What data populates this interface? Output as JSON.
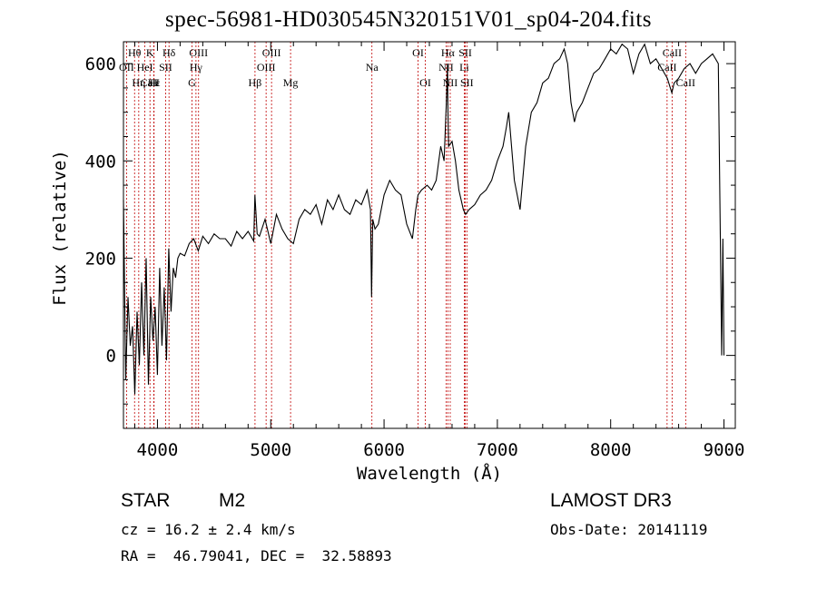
{
  "chart_data": {
    "type": "line",
    "title": "spec-56981-HD030545N320151V01_sp04-204.fits",
    "xlabel": "Wavelength (Å)",
    "ylabel": "Flux (relative)",
    "xlim": [
      3700,
      9100
    ],
    "ylim": [
      -150,
      645
    ],
    "xticks": [
      {
        "value": 4000,
        "label": "4000"
      },
      {
        "value": 5000,
        "label": "5000"
      },
      {
        "value": 6000,
        "label": "6000"
      },
      {
        "value": 7000,
        "label": "7000"
      },
      {
        "value": 8000,
        "label": "8000"
      },
      {
        "value": 9000,
        "label": "9000"
      }
    ],
    "yticks": [
      {
        "value": 0,
        "label": "0"
      },
      {
        "value": 200,
        "label": "200"
      },
      {
        "value": 400,
        "label": "400"
      },
      {
        "value": 600,
        "label": "600"
      }
    ],
    "series": [
      {
        "name": "spectrum",
        "x": [
          3700,
          3720,
          3740,
          3760,
          3780,
          3800,
          3820,
          3840,
          3860,
          3880,
          3900,
          3920,
          3940,
          3960,
          3980,
          4000,
          4020,
          4040,
          4060,
          4080,
          4100,
          4120,
          4140,
          4160,
          4180,
          4200,
          4240,
          4280,
          4320,
          4360,
          4400,
          4450,
          4500,
          4550,
          4600,
          4650,
          4700,
          4750,
          4800,
          4850,
          4860,
          4880,
          4900,
          4950,
          5000,
          5050,
          5100,
          5150,
          5200,
          5250,
          5300,
          5350,
          5400,
          5450,
          5500,
          5550,
          5600,
          5650,
          5700,
          5750,
          5800,
          5850,
          5880,
          5890,
          5900,
          5920,
          5950,
          6000,
          6050,
          6100,
          6150,
          6200,
          6250,
          6280,
          6300,
          6330,
          6380,
          6420,
          6460,
          6500,
          6530,
          6550,
          6560,
          6563,
          6570,
          6600,
          6630,
          6660,
          6700,
          6720,
          6750,
          6800,
          6850,
          6900,
          6950,
          7000,
          7050,
          7080,
          7100,
          7150,
          7200,
          7250,
          7300,
          7350,
          7400,
          7450,
          7500,
          7550,
          7590,
          7620,
          7650,
          7680,
          7700,
          7750,
          7800,
          7850,
          7900,
          7950,
          8000,
          8050,
          8100,
          8150,
          8200,
          8250,
          8300,
          8350,
          8400,
          8450,
          8500,
          8540,
          8560,
          8600,
          8650,
          8700,
          8750,
          8800,
          8850,
          8900,
          8950,
          8980,
          8990,
          9000
        ],
        "values": [
          320,
          -50,
          120,
          20,
          60,
          -80,
          90,
          -20,
          150,
          0,
          200,
          -60,
          120,
          30,
          100,
          -40,
          180,
          20,
          140,
          -10,
          220,
          90,
          180,
          160,
          200,
          210,
          205,
          230,
          240,
          215,
          245,
          230,
          250,
          240,
          240,
          225,
          255,
          240,
          255,
          235,
          330,
          250,
          245,
          280,
          230,
          290,
          260,
          240,
          230,
          280,
          300,
          290,
          310,
          270,
          320,
          300,
          330,
          300,
          290,
          320,
          310,
          340,
          300,
          120,
          280,
          260,
          270,
          330,
          360,
          340,
          330,
          270,
          240,
          300,
          330,
          340,
          350,
          340,
          360,
          430,
          400,
          520,
          600,
          520,
          430,
          440,
          400,
          340,
          300,
          290,
          300,
          310,
          330,
          340,
          360,
          400,
          430,
          470,
          500,
          360,
          300,
          430,
          500,
          520,
          560,
          570,
          600,
          610,
          630,
          600,
          520,
          480,
          500,
          520,
          550,
          580,
          590,
          610,
          630,
          620,
          640,
          630,
          580,
          620,
          640,
          600,
          610,
          590,
          570,
          540,
          560,
          570,
          590,
          600,
          580,
          600,
          610,
          620,
          600,
          0,
          240,
          0
        ]
      }
    ],
    "annotations": [
      {
        "label": "Hθ",
        "wavelength": 3798,
        "row": 1
      },
      {
        "label": "OII",
        "wavelength": 3727,
        "row": 2
      },
      {
        "label": "CaII",
        "wavelength": 3934,
        "row": 3
      },
      {
        "label": "Hε",
        "wavelength": 3970,
        "row": 3
      },
      {
        "label": "K",
        "wavelength": 3934,
        "row": 1
      },
      {
        "label": "HeI",
        "wavelength": 3889,
        "row": 2
      },
      {
        "label": "SII",
        "wavelength": 4072,
        "row": 2
      },
      {
        "label": "Hη",
        "wavelength": 3835,
        "row": 3
      },
      {
        "label": "H",
        "wavelength": 3968,
        "row": 3
      },
      {
        "label": "Hδ",
        "wavelength": 4102,
        "row": 1
      },
      {
        "label": "OIII",
        "wavelength": 4363,
        "row": 1
      },
      {
        "label": "Hγ",
        "wavelength": 4340,
        "row": 2
      },
      {
        "label": "G",
        "wavelength": 4305,
        "row": 3
      },
      {
        "label": "OIII",
        "wavelength": 5007,
        "row": 1
      },
      {
        "label": "OIII",
        "wavelength": 4959,
        "row": 2
      },
      {
        "label": "Hβ",
        "wavelength": 4861,
        "row": 3
      },
      {
        "label": "Mg",
        "wavelength": 5175,
        "row": 3
      },
      {
        "label": "Na",
        "wavelength": 5893,
        "row": 2
      },
      {
        "label": "OI",
        "wavelength": 6300,
        "row": 1
      },
      {
        "label": "OI",
        "wavelength": 6364,
        "row": 3
      },
      {
        "label": "Hα",
        "wavelength": 6563,
        "row": 1
      },
      {
        "label": "SII",
        "wavelength": 6717,
        "row": 1
      },
      {
        "label": "NII",
        "wavelength": 6548,
        "row": 2
      },
      {
        "label": "Li",
        "wavelength": 6708,
        "row": 2
      },
      {
        "label": "NII",
        "wavelength": 6584,
        "row": 3
      },
      {
        "label": "SII",
        "wavelength": 6731,
        "row": 3
      },
      {
        "label": "CaII",
        "wavelength": 8542,
        "row": 1
      },
      {
        "label": "CaII",
        "wavelength": 8498,
        "row": 2
      },
      {
        "label": "CaII",
        "wavelength": 8662,
        "row": 3
      }
    ],
    "line_markers": [
      3727,
      3798,
      3835,
      3889,
      3934,
      3968,
      3970,
      4072,
      4102,
      4305,
      4340,
      4363,
      4861,
      4959,
      5007,
      5175,
      5893,
      6300,
      6364,
      6548,
      6563,
      6584,
      6708,
      6717,
      6731,
      8498,
      8542,
      8662
    ]
  },
  "info": {
    "class_label": "STAR",
    "subclass": "M2",
    "survey": "LAMOST DR3",
    "cz": "cz = 16.2 ± 2.4 km/s",
    "obs_date": "Obs-Date: 20141119",
    "coords": "RA =  46.79041, DEC =  32.58893"
  },
  "colors": {
    "spectrum": "#000000",
    "marker": "#c00000",
    "axis": "#000000"
  }
}
